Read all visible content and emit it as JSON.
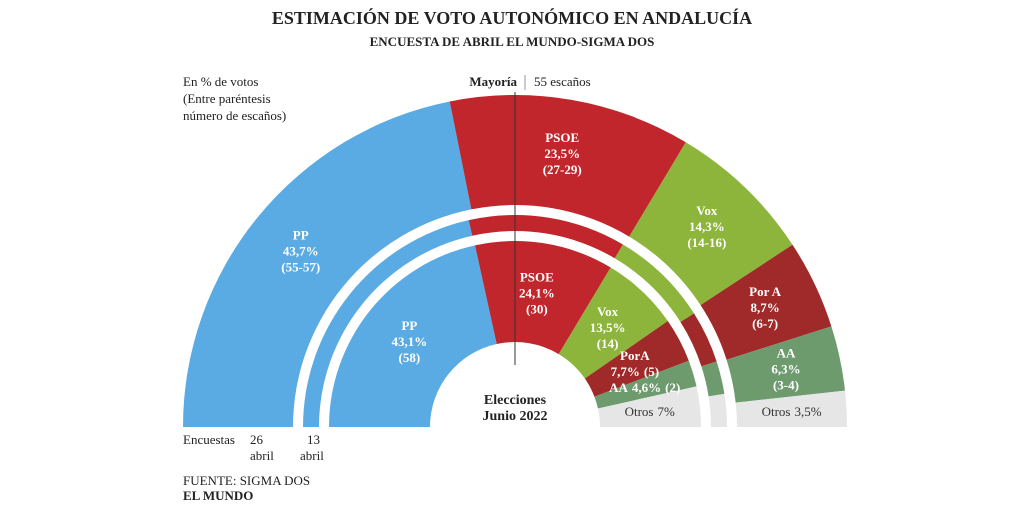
{
  "chart_data": {
    "type": "semicircle-donut",
    "title": "ESTIMACIÓN DE VOTO AUTONÓMICO EN ANDALUCÍA",
    "subtitle": "ENCUESTA DE ABRIL EL MUNDO-SIGMA DOS",
    "note": [
      "En % de votos",
      "(Entre paréntesis",
      "número de escaños)"
    ],
    "majority": {
      "label": "Mayoría",
      "value_label": "55 escaños"
    },
    "colors": [
      "#5aabe3",
      "#c0262b",
      "#8db53c",
      "#a02a2a",
      "#6d9b6e",
      "#e6e6e6"
    ],
    "rings": [
      {
        "axis_label": "Encuestas",
        "label": [
          "26",
          "abril"
        ],
        "parties": [
          "PP",
          "PSOE",
          "Vox",
          "Por A",
          "AA",
          "Otros"
        ],
        "values": [
          43.7,
          23.5,
          14.3,
          8.7,
          6.3,
          3.5
        ],
        "value_labels": [
          "43,7%",
          "23,5%",
          "14,3%",
          "8,7%",
          "6,3%",
          "3,5%"
        ],
        "seats": [
          "(55-57)",
          "(27-29)",
          "(14-16)",
          "(6-7)",
          "(3-4)",
          null
        ]
      },
      {
        "label": [
          "13",
          "abril"
        ],
        "values": [
          43,
          24,
          15,
          8,
          5,
          5
        ]
      },
      {
        "label": [
          "Elecciones",
          "Junio 2022"
        ],
        "parties": [
          "PP",
          "PSOE",
          "Vox",
          "PorA",
          "AA",
          "Otros"
        ],
        "values": [
          43.1,
          24.1,
          13.5,
          7.7,
          4.6,
          7
        ],
        "value_labels": [
          "43,1%",
          "24,1%",
          "13,5%",
          "7,7%",
          "4,6%",
          "7%"
        ],
        "seats": [
          "(58)",
          "(30)",
          "(14)",
          "(5)",
          "(2)",
          null
        ]
      }
    ],
    "source": "FUENTE: SIGMA DOS",
    "publisher": "EL MUNDO"
  }
}
